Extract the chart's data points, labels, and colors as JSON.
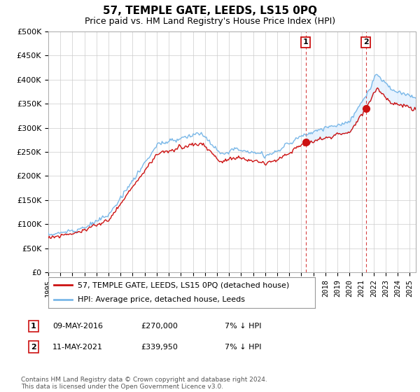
{
  "title": "57, TEMPLE GATE, LEEDS, LS15 0PQ",
  "subtitle": "Price paid vs. HM Land Registry's House Price Index (HPI)",
  "ylim": [
    0,
    500000
  ],
  "yticks": [
    0,
    50000,
    100000,
    150000,
    200000,
    250000,
    300000,
    350000,
    400000,
    450000,
    500000
  ],
  "ytick_labels": [
    "£0",
    "£50K",
    "£100K",
    "£150K",
    "£200K",
    "£250K",
    "£300K",
    "£350K",
    "£400K",
    "£450K",
    "£500K"
  ],
  "hpi_color": "#7ab8e8",
  "price_color": "#cc1111",
  "fill_color": "#ddeeff",
  "marker1_x": 2016.35,
  "marker1_y": 270000,
  "marker2_x": 2021.35,
  "marker2_y": 339950,
  "vline_color": "#cc1111",
  "legend_label_price": "57, TEMPLE GATE, LEEDS, LS15 0PQ (detached house)",
  "legend_label_hpi": "HPI: Average price, detached house, Leeds",
  "table_rows": [
    {
      "num": "1",
      "date": "09-MAY-2016",
      "price": "£270,000",
      "info": "7% ↓ HPI"
    },
    {
      "num": "2",
      "date": "11-MAY-2021",
      "price": "£339,950",
      "info": "7% ↓ HPI"
    }
  ],
  "footnote": "Contains HM Land Registry data © Crown copyright and database right 2024.\nThis data is licensed under the Open Government Licence v3.0.",
  "background_color": "#ffffff",
  "grid_color": "#cccccc",
  "xlim_start": 1995,
  "xlim_end": 2025.5
}
